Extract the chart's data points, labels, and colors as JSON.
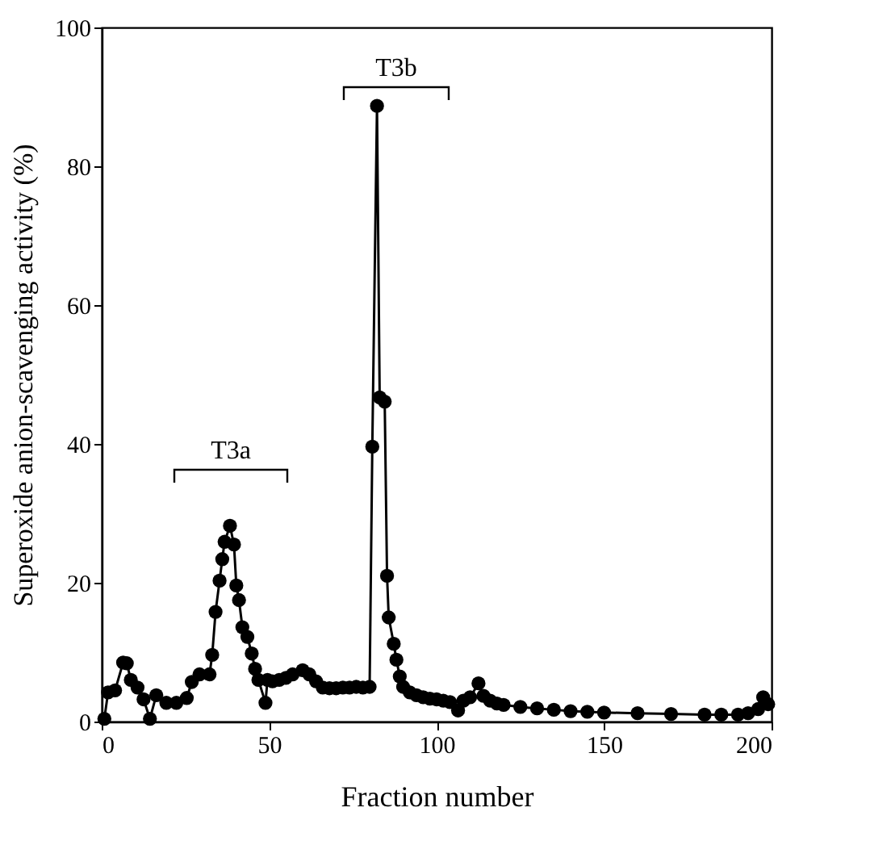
{
  "chart_data": {
    "type": "line",
    "xlabel": "Fraction number",
    "ylabel": "Superoxide anion-scavenging activity (%)",
    "xlim": [
      0,
      200
    ],
    "xticks": [
      0,
      50,
      100,
      150,
      200
    ],
    "ylim": [
      0,
      100
    ],
    "yticks": [
      0,
      20,
      40,
      60,
      80,
      100
    ],
    "grid": false,
    "marker": "circle",
    "line_style": "solid",
    "series": [
      {
        "color": "#000000",
        "x": [
          0.8,
          1.9,
          4,
          6.4,
          7.5,
          8.7,
          10.7,
          12.5,
          14.4,
          16.3,
          19.3,
          22.3,
          25.4,
          26.9,
          29.2,
          32.2,
          33,
          34,
          35.2,
          36,
          36.7,
          38.3,
          39.5,
          40.2,
          41,
          42,
          43.5,
          44.8,
          45.8,
          46.8,
          48.9,
          49.5,
          51,
          53,
          55,
          57,
          60,
          62,
          64,
          66,
          68,
          70,
          72,
          74,
          76,
          78,
          80,
          80.8,
          82.2,
          83,
          84.5,
          85.2,
          85.7,
          87.2,
          88,
          89,
          90,
          92,
          94,
          96,
          98,
          100,
          102,
          104,
          106.4,
          108,
          110,
          112.5,
          114,
          116,
          118,
          120,
          125,
          130,
          135,
          140,
          145,
          150,
          160,
          170,
          180,
          185,
          190,
          193,
          196,
          197.5,
          199
        ],
        "values": [
          0.4,
          4.2,
          4.5,
          8.5,
          8.4,
          6,
          4.9,
          3.2,
          0.4,
          3.8,
          2.7,
          2.7,
          3.4,
          5.7,
          6.8,
          6.8,
          9.6,
          15.8,
          20.3,
          23.4,
          25.9,
          28.2,
          25.5,
          19.6,
          17.5,
          13.6,
          12.2,
          9.8,
          7.6,
          6,
          2.7,
          6,
          5.8,
          6,
          6.3,
          6.8,
          7.4,
          6.8,
          5.8,
          4.9,
          4.8,
          4.8,
          4.9,
          4.9,
          5,
          4.9,
          5,
          39.6,
          88.7,
          46.7,
          46.1,
          21,
          15,
          11.2,
          8.9,
          6.5,
          5,
          4.2,
          3.8,
          3.5,
          3.3,
          3.2,
          3,
          2.8,
          1.6,
          3,
          3.5,
          5.5,
          3.7,
          3,
          2.6,
          2.4,
          2.1,
          1.9,
          1.7,
          1.5,
          1.4,
          1.3,
          1.2,
          1.1,
          1,
          1,
          1,
          1.2,
          1.8,
          3.5,
          2.5
        ]
      }
    ],
    "annotations": [
      "T3a",
      "T3b"
    ]
  }
}
